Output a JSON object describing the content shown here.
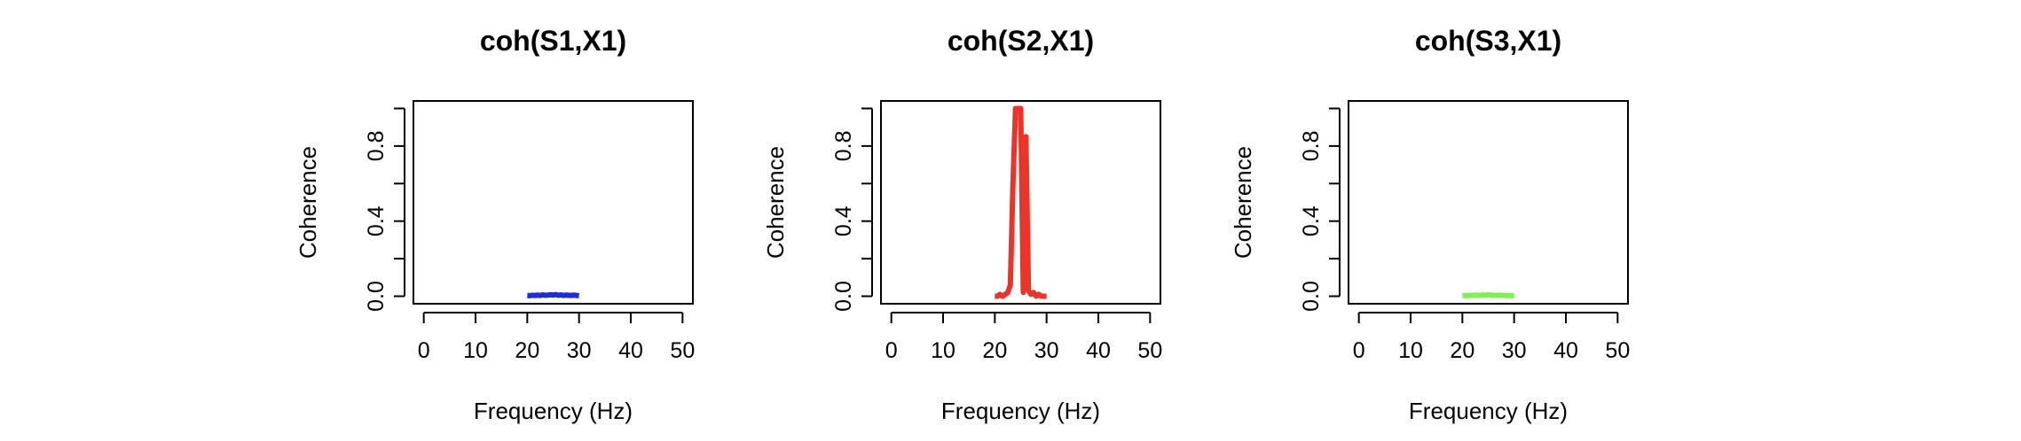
{
  "chart_data": [
    {
      "type": "line",
      "title": "coh(S1,X1)",
      "xlabel": "Frequency (Hz)",
      "ylabel": "Coherence",
      "x": [
        20,
        20.5,
        21,
        21.5,
        22,
        22.5,
        23,
        23.5,
        24,
        24.5,
        25,
        25.5,
        26,
        26.5,
        27,
        27.5,
        28,
        28.5,
        29,
        29.5,
        30
      ],
      "series": [
        {
          "name": "coh(S1,X1)",
          "color": "#1a2fd6",
          "values": [
            0.004,
            0.003,
            0.005,
            0.004,
            0.006,
            0.004,
            0.007,
            0.005,
            0.006,
            0.008,
            0.006,
            0.009,
            0.005,
            0.007,
            0.004,
            0.006,
            0.005,
            0.004,
            0.006,
            0.004,
            0.003
          ]
        }
      ],
      "xlim": [
        -2,
        52
      ],
      "xticks": [
        0,
        10,
        20,
        30,
        40,
        50
      ],
      "ylim": [
        -0.04,
        1.04
      ],
      "yticks": [
        {
          "value": 0,
          "label": "0.0"
        },
        {
          "value": 0.4,
          "label": "0.4"
        },
        {
          "value": 0.8,
          "label": "0.8"
        }
      ],
      "yticks_unlabeled": [
        0.2,
        0.6,
        1.0
      ]
    },
    {
      "type": "line",
      "title": "coh(S2,X1)",
      "xlabel": "Frequency (Hz)",
      "ylabel": "Coherence",
      "x": [
        20,
        20.5,
        21,
        21.5,
        22,
        22.5,
        23,
        23.5,
        24,
        24.5,
        25,
        25.5,
        26,
        26.5,
        27,
        27.5,
        28,
        28.5,
        29,
        29.5,
        30
      ],
      "series": [
        {
          "name": "coh(S2,X1)",
          "color": "#e8342a",
          "values": [
            0,
            0,
            0.01,
            0,
            0.01,
            0.02,
            0.06,
            0.6,
            1.0,
            1.0,
            1.0,
            0.02,
            0.85,
            0.03,
            0.01,
            0.02,
            0,
            0.01,
            0,
            0,
            0
          ]
        }
      ],
      "xlim": [
        -2,
        52
      ],
      "xticks": [
        0,
        10,
        20,
        30,
        40,
        50
      ],
      "ylim": [
        -0.04,
        1.04
      ],
      "yticks": [
        {
          "value": 0,
          "label": "0.0"
        },
        {
          "value": 0.4,
          "label": "0.4"
        },
        {
          "value": 0.8,
          "label": "0.8"
        }
      ],
      "yticks_unlabeled": [
        0.2,
        0.6,
        1.0
      ]
    },
    {
      "type": "line",
      "title": "coh(S3,X1)",
      "xlabel": "Frequency (Hz)",
      "ylabel": "Coherence",
      "x": [
        20,
        20.5,
        21,
        21.5,
        22,
        22.5,
        23,
        23.5,
        24,
        24.5,
        25,
        25.5,
        26,
        26.5,
        27,
        27.5,
        28,
        28.5,
        29,
        29.5,
        30
      ],
      "series": [
        {
          "name": "coh(S3,X1)",
          "color": "#7ff055",
          "values": [
            0.003,
            0.004,
            0.003,
            0.005,
            0.004,
            0.006,
            0.004,
            0.005,
            0.007,
            0.005,
            0.008,
            0.006,
            0.005,
            0.004,
            0.006,
            0.004,
            0.005,
            0.003,
            0.004,
            0.003,
            0.004
          ]
        }
      ],
      "xlim": [
        -2,
        52
      ],
      "xticks": [
        0,
        10,
        20,
        30,
        40,
        50
      ],
      "ylim": [
        -0.04,
        1.04
      ],
      "yticks": [
        {
          "value": 0,
          "label": "0.0"
        },
        {
          "value": 0.4,
          "label": "0.4"
        },
        {
          "value": 0.8,
          "label": "0.8"
        }
      ],
      "yticks_unlabeled": [
        0.2,
        0.6,
        1.0
      ]
    }
  ]
}
